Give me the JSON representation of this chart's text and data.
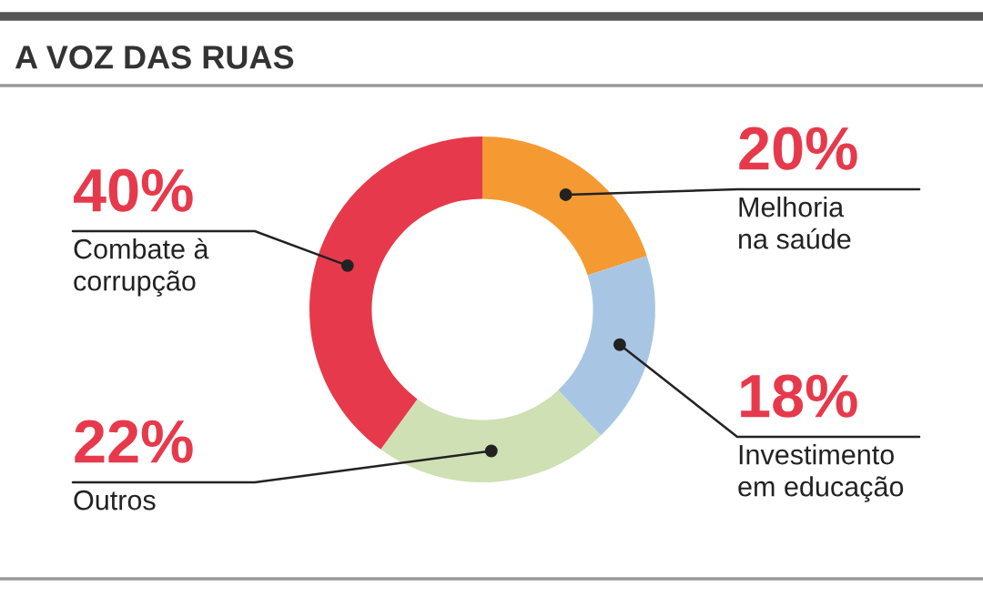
{
  "chart_data": {
    "type": "donut",
    "title": "A VOZ DAS RUAS",
    "categories": [
      "Melhoria\nna saúde",
      "Investimento\nem educação",
      "Outros",
      "Combate à\ncorrupção"
    ],
    "values": [
      20,
      18,
      22,
      40
    ],
    "value_labels": [
      "20%",
      "18%",
      "22%",
      "40%"
    ],
    "colors": [
      "#f59a32",
      "#a8c6e4",
      "#cfe0b4",
      "#e63a4c"
    ],
    "legend": false
  }
}
